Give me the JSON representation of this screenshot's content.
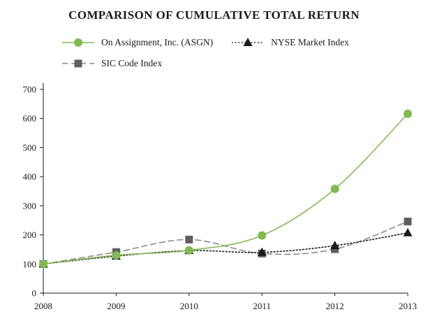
{
  "title": "COMPARISON OF CUMULATIVE TOTAL RETURN",
  "colors": {
    "asgn_green": "#82ba51",
    "nyse_black": "#1a1a1a",
    "sic_gray_line": "#8c8c8c",
    "sic_gray_marker": "#5f5f5f",
    "axis": "#1a1a1a"
  },
  "chart_data": {
    "type": "line",
    "x": [
      2008,
      2009,
      2010,
      2011,
      2012,
      2013
    ],
    "series": [
      {
        "name": "On Assignment, Inc. (ASGN)",
        "values": [
          100,
          130,
          147,
          198,
          358,
          616
        ],
        "color": "#82ba51",
        "marker_color": "#82ba51",
        "line": "solid",
        "marker": "circle"
      },
      {
        "name": "NYSE Market Index",
        "values": [
          100,
          127,
          146,
          140,
          163,
          207
        ],
        "color": "#1a1a1a",
        "marker_color": "#1a1a1a",
        "line": "dotted",
        "marker": "triangle"
      },
      {
        "name": "SIC Code Index",
        "values": [
          100,
          141,
          184,
          136,
          151,
          246
        ],
        "color": "#8c8c8c",
        "marker_color": "#5f5f5f",
        "line": "dashed",
        "marker": "square"
      }
    ],
    "title": "COMPARISON OF CUMULATIVE TOTAL RETURN",
    "xlabel": "",
    "ylabel": "",
    "ylim": [
      0,
      700
    ],
    "ytick_step": 100,
    "grid": false,
    "legend_position": "top-left"
  }
}
